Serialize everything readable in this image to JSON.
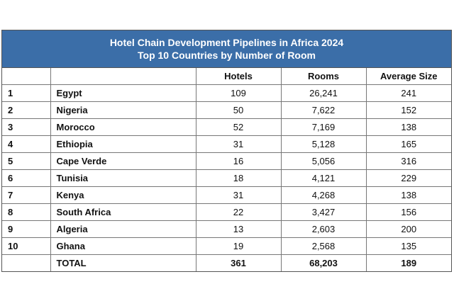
{
  "header": {
    "title": [
      "Hotel Chain Development Pipelines in Africa 2024",
      "Top 10 Countries by Number of Room"
    ]
  },
  "table": {
    "columns": [
      "Hotels",
      "Rooms",
      "Average Size"
    ],
    "rows": [
      [
        "1",
        "Egypt",
        "109",
        "26,241",
        "241"
      ],
      [
        "2",
        "Nigeria",
        "50",
        "7,622",
        "152"
      ],
      [
        "3",
        "Morocco",
        "52",
        "7,169",
        "138"
      ],
      [
        "4",
        "Ethiopia",
        "31",
        "5,128",
        "165"
      ],
      [
        "5",
        "Cape Verde",
        "16",
        "5,056",
        "316"
      ],
      [
        "6",
        "Tunisia",
        "18",
        "4,121",
        "229"
      ],
      [
        "7",
        "Kenya",
        "31",
        "4,268",
        "138"
      ],
      [
        "8",
        "South Africa",
        "22",
        "3,427",
        "156"
      ],
      [
        "9",
        "Algeria",
        "13",
        "2,603",
        "200"
      ],
      [
        "10",
        "Ghana",
        "19",
        "2,568",
        "135"
      ]
    ],
    "total": [
      "TOTAL",
      "361",
      "68,203",
      "189"
    ]
  }
}
